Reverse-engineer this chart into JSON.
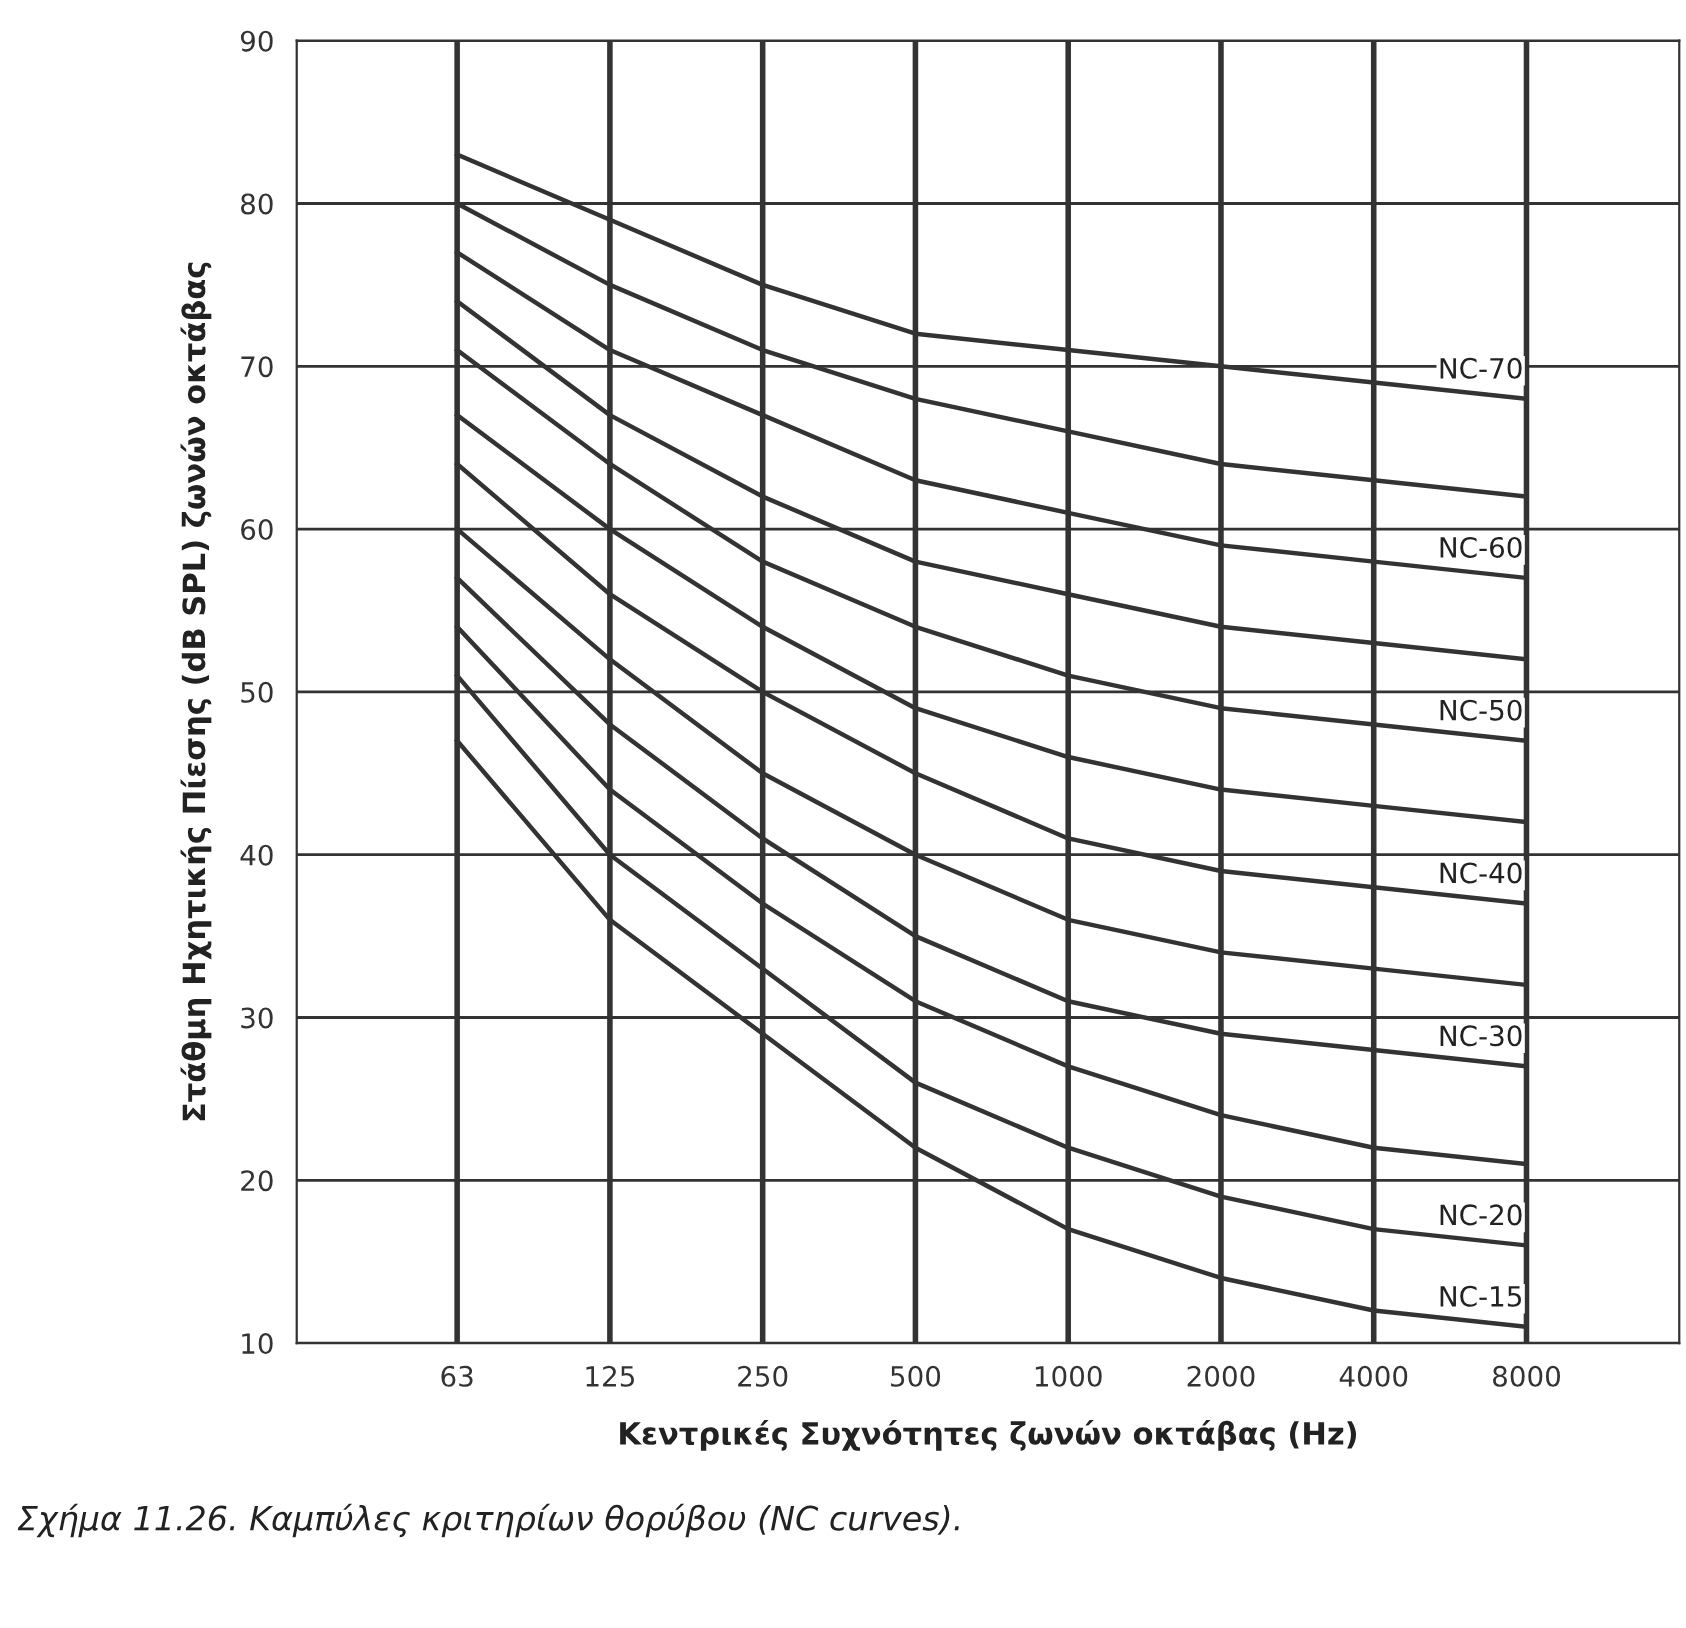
{
  "chart_data": {
    "type": "line",
    "xlabel": "Κεντρικές Συχνότητες ζωνών οκτάβας (Hz)",
    "ylabel": "Στάθμη Ηχητικής Πίεσης (dB SPL) ζωνών οκτάβας",
    "annotations": [
      "Σχήμα 11.26. Καμπύλες κριτηρίων θορύβου (NC curves)."
    ],
    "categories": [
      "63",
      "125",
      "250",
      "500",
      "1000",
      "2000",
      "4000",
      "8000"
    ],
    "ylim": [
      10,
      90
    ],
    "yticks": [
      10,
      20,
      30,
      40,
      50,
      60,
      70,
      80,
      90
    ],
    "grid": true,
    "legend": false,
    "marker": "none",
    "line_style": "solid",
    "series": [
      {
        "name": "NC-70",
        "color": "#333333",
        "values": [
          83,
          79,
          75,
          72,
          71,
          70,
          69,
          68
        ]
      },
      {
        "color": "#333333",
        "values": [
          80,
          75,
          71,
          68,
          66,
          64,
          63,
          62
        ]
      },
      {
        "name": "NC-60",
        "color": "#333333",
        "values": [
          77,
          71,
          67,
          63,
          61,
          59,
          58,
          57
        ]
      },
      {
        "color": "#333333",
        "values": [
          74,
          67,
          62,
          58,
          56,
          54,
          53,
          52
        ]
      },
      {
        "name": "NC-50",
        "color": "#333333",
        "values": [
          71,
          64,
          58,
          54,
          51,
          49,
          48,
          47
        ]
      },
      {
        "color": "#333333",
        "values": [
          67,
          60,
          54,
          49,
          46,
          44,
          43,
          42
        ]
      },
      {
        "name": "NC-40",
        "color": "#333333",
        "values": [
          64,
          56,
          50,
          45,
          41,
          39,
          38,
          37
        ]
      },
      {
        "color": "#333333",
        "values": [
          60,
          52,
          45,
          40,
          36,
          34,
          33,
          32
        ]
      },
      {
        "name": "NC-30",
        "color": "#333333",
        "values": [
          57,
          48,
          41,
          35,
          31,
          29,
          28,
          27
        ]
      },
      {
        "color": "#333333",
        "values": [
          54,
          44,
          37,
          31,
          27,
          24,
          22,
          21
        ]
      },
      {
        "name": "NC-20",
        "color": "#333333",
        "values": [
          51,
          40,
          33,
          26,
          22,
          19,
          17,
          16
        ]
      },
      {
        "name": "NC-15",
        "color": "#333333",
        "values": [
          47,
          36,
          29,
          22,
          17,
          14,
          12,
          11
        ]
      }
    ]
  }
}
